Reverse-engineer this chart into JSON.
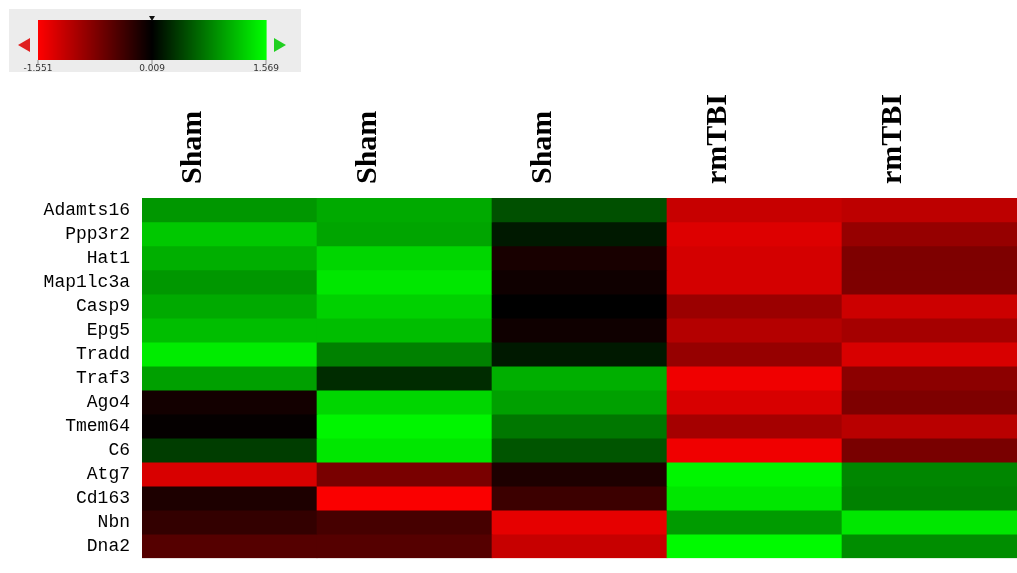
{
  "chart_data": {
    "type": "heatmap",
    "categories": [
      "Sham",
      "Sham",
      "Sham",
      "rmTBI",
      "rmTBI"
    ],
    "y_categories": [
      "Adamts16",
      "Ppp3r2",
      "Hat1",
      "Map1lc3a",
      "Casp9",
      "Epg5",
      "Tradd",
      "Traf3",
      "Ago4",
      "Tmem64",
      "C6",
      "Atg7",
      "Cd163",
      "Nbn",
      "Dna2"
    ],
    "cells": [
      [
        0.93,
        1.05,
        0.5,
        -1.21,
        -1.15
      ],
      [
        1.23,
        1.02,
        0.16,
        -1.34,
        -0.91
      ],
      [
        1.08,
        1.32,
        -0.14,
        -1.29,
        -0.76
      ],
      [
        0.93,
        1.42,
        -0.08,
        -1.29,
        -0.76
      ],
      [
        1.05,
        1.29,
        0.01,
        -0.94,
        -1.24
      ],
      [
        1.17,
        1.17,
        -0.08,
        -1.09,
        -1.0
      ],
      [
        1.45,
        0.8,
        0.16,
        -0.91,
        -1.31
      ],
      [
        0.99,
        0.28,
        1.08,
        -1.46,
        -0.85
      ],
      [
        -0.11,
        1.32,
        0.99,
        -1.31,
        -0.76
      ],
      [
        -0.02,
        1.51,
        0.74,
        -1.0,
        -1.12
      ],
      [
        0.38,
        1.42,
        0.53,
        -1.46,
        -0.73
      ],
      [
        -1.31,
        -0.73,
        -0.17,
        1.51,
        0.83
      ],
      [
        -0.17,
        -1.52,
        -0.36,
        1.42,
        0.8
      ],
      [
        -0.3,
        -0.42,
        -1.4,
        0.96,
        1.42
      ],
      [
        -0.51,
        -0.51,
        -1.21,
        1.54,
        0.87
      ]
    ],
    "clim": [
      -1.551,
      1.569
    ],
    "cticks": [
      -1.551,
      0.009,
      1.569
    ]
  }
}
